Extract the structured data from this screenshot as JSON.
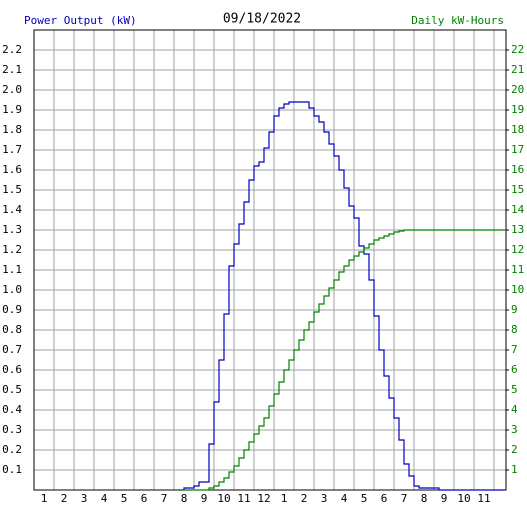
{
  "chart_data": {
    "type": "step-line",
    "title": "09/18/2022",
    "y_label": "Power Output (kW)",
    "y2_label": "Daily kW-Hours",
    "x": [
      7.75,
      8,
      8.25,
      8.5,
      8.75,
      9,
      9.25,
      9.5,
      9.75,
      10,
      10.25,
      10.5,
      10.75,
      11,
      11.25,
      11.5,
      11.75,
      12,
      12.25,
      12.5,
      12.75,
      13,
      13.25,
      13.5,
      13.75,
      14,
      14.25,
      14.5,
      14.75,
      15,
      15.25,
      15.5,
      15.75,
      16,
      16.25,
      16.5,
      16.75,
      17,
      17.25,
      17.5,
      17.75,
      18,
      18.25,
      18.5,
      18.75,
      19,
      19.25,
      19.5,
      19.75,
      20,
      20.25,
      20.5,
      20.75,
      21,
      21.25,
      21.5,
      21.75,
      22,
      22.25,
      22.5,
      22.75,
      23,
      23.25,
      23.5,
      23.75,
      24
    ],
    "series": [
      {
        "name": "Power Output (kW)",
        "color": "#0000c0",
        "values": [
          0,
          0.01,
          0.01,
          0.02,
          0.04,
          0.04,
          0.23,
          0.44,
          0.65,
          0.88,
          1.12,
          1.23,
          1.33,
          1.44,
          1.55,
          1.62,
          1.64,
          1.71,
          1.79,
          1.87,
          1.91,
          1.93,
          1.94,
          1.94,
          1.94,
          1.94,
          1.91,
          1.87,
          1.84,
          1.79,
          1.73,
          1.67,
          1.6,
          1.51,
          1.42,
          1.36,
          1.22,
          1.18,
          1.05,
          0.87,
          0.7,
          0.57,
          0.46,
          0.36,
          0.25,
          0.13,
          0.07,
          0.02,
          0.01,
          0.01,
          0.01,
          0.01,
          0,
          0,
          0,
          0,
          0,
          0,
          0,
          0,
          0,
          0,
          0,
          0,
          0,
          0
        ]
      },
      {
        "name": "Daily kW-Hours",
        "color": "#008000",
        "axis": "y2",
        "values": [
          0,
          0,
          0,
          0,
          0,
          0,
          0.1,
          0.2,
          0.4,
          0.6,
          0.9,
          1.2,
          1.6,
          2.0,
          2.4,
          2.8,
          3.2,
          3.6,
          4.2,
          4.8,
          5.4,
          6.0,
          6.5,
          7.0,
          7.5,
          8.0,
          8.4,
          8.9,
          9.3,
          9.7,
          10.1,
          10.5,
          10.9,
          11.2,
          11.5,
          11.7,
          11.9,
          12.1,
          12.3,
          12.5,
          12.6,
          12.7,
          12.8,
          12.9,
          12.95,
          13,
          13,
          13,
          13,
          13,
          13,
          13,
          13,
          13,
          13,
          13,
          13,
          13,
          13,
          13,
          13,
          13,
          13,
          13,
          13,
          13
        ]
      }
    ],
    "xlim": [
      0.5,
      24.1
    ],
    "xticks": [
      1,
      2,
      3,
      4,
      5,
      6,
      7,
      8,
      9,
      10,
      11,
      12,
      {
        "value": 13,
        "label": "1"
      },
      {
        "value": 14,
        "label": "2"
      },
      {
        "value": 15,
        "label": "3"
      },
      {
        "value": 16,
        "label": "4"
      },
      {
        "value": 17,
        "label": "5"
      },
      {
        "value": 18,
        "label": "6"
      },
      {
        "value": 19,
        "label": "7"
      },
      {
        "value": 20,
        "label": "8"
      },
      {
        "value": 21,
        "label": "9"
      },
      {
        "value": 22,
        "label": "10"
      },
      {
        "value": 23,
        "label": "11"
      }
    ],
    "ylim": [
      0,
      2.3
    ],
    "yticks": [
      0.1,
      0.2,
      0.3,
      0.4,
      0.5,
      0.6,
      0.7,
      0.8,
      0.9,
      {
        "value": 1,
        "label": "1.0"
      },
      1.1,
      1.2,
      1.3,
      1.4,
      1.5,
      1.6,
      1.7,
      1.8,
      1.9,
      {
        "value": 2,
        "label": "2.0"
      },
      2.1,
      2.2
    ],
    "y2lim": [
      0,
      23
    ],
    "y2ticks": [
      1,
      2,
      3,
      4,
      5,
      6,
      7,
      8,
      9,
      10,
      11,
      12,
      13,
      14,
      15,
      16,
      17,
      18,
      19,
      20,
      21,
      22
    ],
    "grid": true
  }
}
